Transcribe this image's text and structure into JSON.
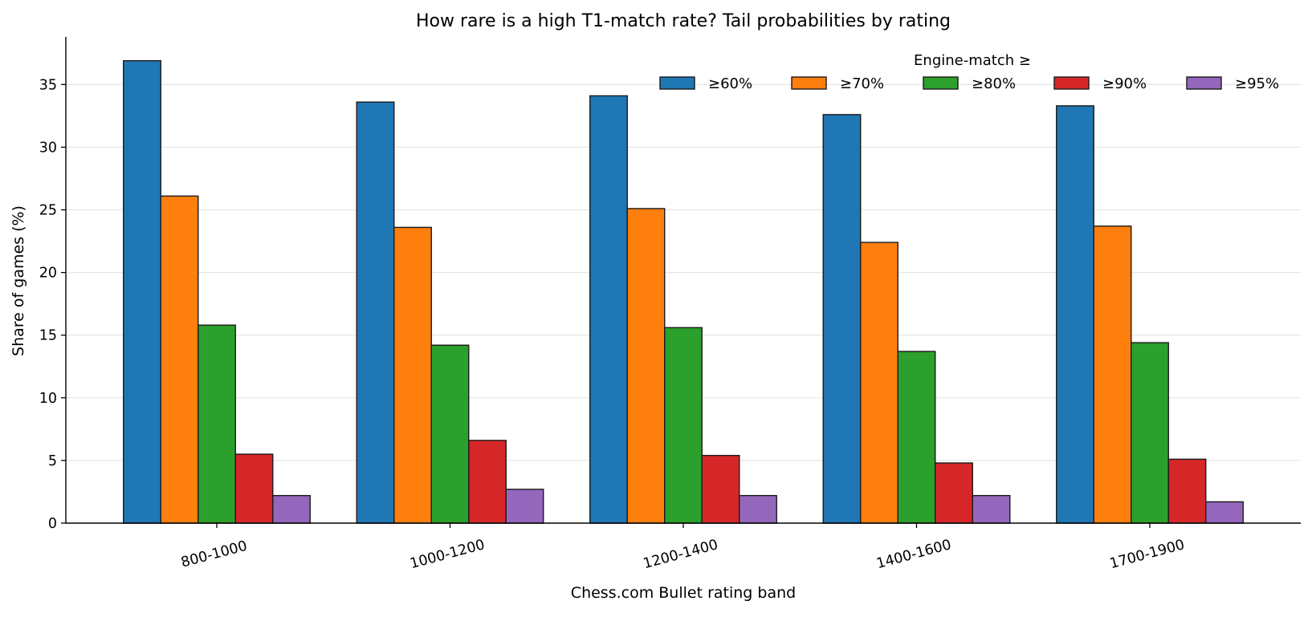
{
  "chart_data": {
    "type": "bar",
    "title": "How rare is a high T1-match rate? Tail probabilities by rating",
    "xlabel": "Chess.com Bullet rating band",
    "ylabel": "Share of games (%)",
    "categories": [
      "800-1000",
      "1000-1200",
      "1200-1400",
      "1400-1600",
      "1700-1900"
    ],
    "ylim": [
      0,
      38.8
    ],
    "yticks": [
      0,
      5,
      10,
      15,
      20,
      25,
      30,
      35
    ],
    "grid": "horizontal",
    "legend": {
      "title": "Engine-match ≥",
      "placement": "top-right"
    },
    "series": [
      {
        "name": "≥60%",
        "color": "#1f77b4",
        "values": [
          36.9,
          33.6,
          34.1,
          32.6,
          33.3
        ]
      },
      {
        "name": "≥70%",
        "color": "#ff7f0e",
        "values": [
          26.1,
          23.6,
          25.1,
          22.4,
          23.7
        ]
      },
      {
        "name": "≥80%",
        "color": "#2ca02c",
        "values": [
          15.8,
          14.2,
          15.6,
          13.7,
          14.4
        ]
      },
      {
        "name": "≥90%",
        "color": "#d62728",
        "values": [
          5.5,
          6.6,
          5.4,
          4.8,
          5.1
        ]
      },
      {
        "name": "≥95%",
        "color": "#9467bd",
        "values": [
          2.2,
          2.7,
          2.2,
          2.2,
          1.7
        ]
      }
    ]
  }
}
